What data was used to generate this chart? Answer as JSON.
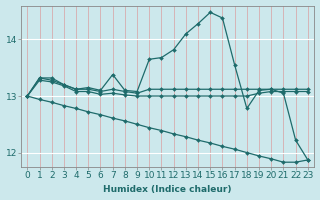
{
  "xlabel": "Humidex (Indice chaleur)",
  "bg_color": "#cce8ec",
  "line_color": "#1e6b6b",
  "vgrid_color": "#d9a0a0",
  "hgrid_color": "#ffffff",
  "xlim": [
    -0.5,
    23.5
  ],
  "ylim": [
    11.75,
    14.6
  ],
  "yticks": [
    12,
    13,
    14
  ],
  "xticks": [
    0,
    1,
    2,
    3,
    4,
    5,
    6,
    7,
    8,
    9,
    10,
    11,
    12,
    13,
    14,
    15,
    16,
    17,
    18,
    19,
    20,
    21,
    22,
    23
  ],
  "series": [
    {
      "x": [
        0,
        1,
        2,
        3,
        4,
        5,
        6,
        7,
        8,
        9,
        10,
        11,
        12,
        13,
        14,
        15,
        16,
        17,
        18,
        19,
        20,
        21,
        22,
        23
      ],
      "y": [
        13.0,
        13.32,
        13.32,
        13.2,
        13.12,
        13.15,
        13.1,
        13.38,
        13.1,
        13.08,
        13.65,
        13.68,
        13.82,
        14.1,
        14.28,
        14.48,
        14.38,
        13.55,
        12.78,
        13.1,
        13.12,
        13.05,
        12.22,
        11.87
      ],
      "has_marker": true
    },
    {
      "x": [
        0,
        1,
        2,
        3,
        4,
        5,
        6,
        7,
        8,
        9,
        10,
        11,
        12,
        13,
        14,
        15,
        16,
        17,
        18,
        19,
        20,
        21,
        22,
        23
      ],
      "y": [
        13.0,
        13.32,
        13.28,
        13.2,
        13.12,
        13.12,
        13.08,
        13.12,
        13.08,
        13.05,
        13.12,
        13.12,
        13.12,
        13.12,
        13.12,
        13.12,
        13.12,
        13.12,
        13.12,
        13.12,
        13.12,
        13.12,
        13.12,
        13.12
      ],
      "has_marker": true
    },
    {
      "x": [
        0,
        1,
        2,
        3,
        4,
        5,
        6,
        7,
        8,
        9,
        10,
        11,
        12,
        13,
        14,
        15,
        16,
        17,
        18,
        19,
        20,
        21,
        22,
        23
      ],
      "y": [
        13.0,
        13.28,
        13.25,
        13.18,
        13.08,
        13.08,
        13.03,
        13.05,
        13.02,
        13.0,
        13.0,
        13.0,
        13.0,
        13.0,
        13.0,
        13.0,
        13.0,
        13.0,
        13.0,
        13.05,
        13.08,
        13.08,
        13.08,
        13.08
      ],
      "has_marker": true
    },
    {
      "x": [
        0,
        1,
        2,
        3,
        4,
        5,
        6,
        7,
        8,
        9,
        10,
        11,
        12,
        13,
        14,
        15,
        16,
        17,
        18,
        19,
        20,
        21,
        22,
        23
      ],
      "y": [
        13.0,
        12.94,
        12.89,
        12.83,
        12.78,
        12.72,
        12.67,
        12.61,
        12.56,
        12.5,
        12.44,
        12.39,
        12.33,
        12.28,
        12.22,
        12.17,
        12.11,
        12.06,
        12.0,
        11.94,
        11.89,
        11.83,
        11.83,
        11.87
      ],
      "has_marker": true
    }
  ],
  "markersize": 2.0,
  "linewidth": 0.9,
  "xlabel_fontsize": 6.5,
  "tick_fontsize": 6.5
}
